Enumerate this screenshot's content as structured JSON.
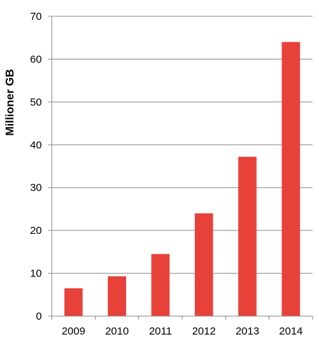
{
  "chart_data": {
    "type": "bar",
    "title": "",
    "xlabel": "",
    "ylabel": "Millioner GB",
    "categories": [
      "2009",
      "2010",
      "2011",
      "2012",
      "2013",
      "2014"
    ],
    "values": [
      6.5,
      9.3,
      14.5,
      24,
      37.2,
      64
    ],
    "ylim": [
      0,
      70
    ],
    "yticks": [
      0,
      10,
      20,
      30,
      40,
      50,
      60,
      70
    ],
    "grid": true,
    "legend": "none",
    "bar_color": "#e8413a",
    "grid_color": "#8c8c8c"
  }
}
